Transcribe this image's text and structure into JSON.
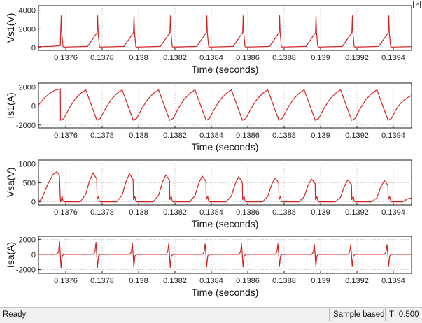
{
  "status_bar": {
    "ready_text": "Ready",
    "mode_text": "Sample based",
    "time_text": "T=0.500"
  },
  "expand_icon": "arrow-up-right-icon",
  "trace_color": "#d42222",
  "chart_data": [
    {
      "type": "line",
      "ylabel": "Vs1(V)",
      "xlabel": "Time (seconds)",
      "xlim": [
        0.13745,
        0.1395
      ],
      "ylim": [
        -300,
        4500
      ],
      "yticks": [
        0,
        2000,
        4000
      ],
      "xticks": [
        0.1376,
        0.1378,
        0.138,
        0.1382,
        0.1384,
        0.1386,
        0.1388,
        0.139,
        0.1392,
        0.1394
      ],
      "xticklabels": [
        "0.1376",
        "0.1378",
        "0.138",
        "0.1382",
        "0.1384",
        "0.1386",
        "0.1388",
        "0.139",
        "0.1392",
        "0.1394"
      ],
      "grid": true,
      "series": [
        {
          "x": [
            0.13745,
            0.13752,
            0.13757,
            0.137572,
            0.137575,
            0.137578,
            0.137585,
            0.13759,
            0.13772,
            0.137772,
            0.137775,
            0.137778,
            0.137785,
            0.13779,
            0.13792,
            0.137972,
            0.137975,
            0.137978,
            0.137985,
            0.13799,
            0.13812,
            0.138172,
            0.138175,
            0.138178,
            0.138185,
            0.13819,
            0.13832,
            0.138372,
            0.138375,
            0.138378,
            0.138385,
            0.13839,
            0.13852,
            0.138572,
            0.138575,
            0.138578,
            0.138585,
            0.13859,
            0.13872,
            0.138772,
            0.138775,
            0.138778,
            0.138785,
            0.13879,
            0.13892,
            0.138972,
            0.138975,
            0.138978,
            0.138985,
            0.13899,
            0.13912,
            0.139172,
            0.139175,
            0.139178,
            0.139185,
            0.13919,
            0.13932,
            0.139372,
            0.139375,
            0.139378,
            0.139385,
            0.13939,
            0.1395
          ],
          "y": [
            100,
            120,
            200,
            1600,
            3400,
            1600,
            100,
            50,
            120,
            1600,
            3400,
            1600,
            100,
            50,
            120,
            1600,
            3400,
            1600,
            100,
            50,
            120,
            1600,
            3400,
            1600,
            100,
            50,
            120,
            1600,
            3400,
            1600,
            100,
            50,
            120,
            1600,
            3400,
            1600,
            100,
            50,
            120,
            1600,
            3400,
            1600,
            100,
            50,
            120,
            1600,
            3400,
            1600,
            100,
            50,
            120,
            1600,
            3400,
            1600,
            100,
            50,
            120,
            1600,
            3400,
            1600,
            100,
            50,
            100
          ]
        }
      ]
    },
    {
      "type": "line",
      "ylabel": "Is1(A)",
      "xlabel": "Time (seconds)",
      "xlim": [
        0.13745,
        0.1395
      ],
      "ylim": [
        -2300,
        2400
      ],
      "yticks": [
        -2000,
        0,
        2000
      ],
      "xticks": [
        0.1376,
        0.1378,
        0.138,
        0.1382,
        0.1384,
        0.1386,
        0.1388,
        0.139,
        0.1392,
        0.1394
      ],
      "xticklabels": [
        "0.1376",
        "0.1378",
        "0.138",
        "0.1382",
        "0.1384",
        "0.1386",
        "0.1388",
        "0.139",
        "0.1392",
        "0.1394"
      ],
      "grid": true,
      "series": [
        {
          "x": [
            0.13745,
            0.13748,
            0.13751,
            0.13754,
            0.13757,
            0.137571,
            0.13759,
            0.13762,
            0.13765,
            0.13768,
            0.13771,
            0.137771,
            0.13779,
            0.13782,
            0.13785,
            0.13788,
            0.13791,
            0.137971,
            0.13799,
            0.13802,
            0.13805,
            0.13808,
            0.13811,
            0.138171,
            0.13819,
            0.13822,
            0.13825,
            0.13828,
            0.13831,
            0.138371,
            0.13839,
            0.13842,
            0.13845,
            0.13848,
            0.13851,
            0.138571,
            0.13859,
            0.13862,
            0.13865,
            0.13868,
            0.13871,
            0.138771,
            0.13879,
            0.13882,
            0.13885,
            0.13888,
            0.13891,
            0.138971,
            0.13899,
            0.13902,
            0.13905,
            0.13908,
            0.13911,
            0.139171,
            0.13919,
            0.13922,
            0.13925,
            0.13928,
            0.13931,
            0.139371,
            0.13939,
            0.13942,
            0.13945,
            0.13948,
            0.1395
          ],
          "y": [
            100,
            800,
            1300,
            1650,
            1800,
            -1500,
            -1300,
            -200,
            700,
            1300,
            1700,
            -1500,
            -1300,
            -200,
            700,
            1300,
            1700,
            -1500,
            -1300,
            -200,
            700,
            1300,
            1700,
            -1500,
            -1300,
            -200,
            700,
            1300,
            1700,
            -1500,
            -1300,
            -200,
            700,
            1300,
            1700,
            -1500,
            -1300,
            -200,
            700,
            1300,
            1700,
            -1500,
            -1300,
            -200,
            700,
            1300,
            1700,
            -1500,
            -1300,
            -200,
            700,
            1300,
            1700,
            -1500,
            -1300,
            -200,
            700,
            1300,
            1700,
            -1500,
            -1300,
            -200,
            500,
            900,
            1100
          ]
        }
      ]
    },
    {
      "type": "line",
      "ylabel": "Vsa(V)",
      "xlabel": "Time (seconds)",
      "xlim": [
        0.13745,
        0.1395
      ],
      "ylim": [
        -80,
        1100
      ],
      "yticks": [
        0,
        500,
        1000
      ],
      "xticks": [
        0.1376,
        0.1378,
        0.138,
        0.1382,
        0.1384,
        0.1386,
        0.1388,
        0.139,
        0.1392,
        0.1394
      ],
      "xticklabels": [
        "0.1376",
        "0.1378",
        "0.138",
        "0.1382",
        "0.1384",
        "0.1386",
        "0.1388",
        "0.139",
        "0.1392",
        "0.1394"
      ],
      "grid": true,
      "series": [
        {
          "x": [
            0.13745,
            0.13747,
            0.1375,
            0.13753,
            0.13755,
            0.137565,
            0.13757,
            0.137572,
            0.13758,
            0.137585,
            0.13759,
            0.13762,
            0.13765,
            0.13768,
            0.13771,
            0.13773,
            0.13775,
            0.13777,
            0.137772,
            0.13778,
            0.137785,
            0.13779,
            0.13782,
            0.13785,
            0.13788,
            0.13791,
            0.13793,
            0.13795,
            0.13797,
            0.137972,
            0.13798,
            0.137985,
            0.13799,
            0.13802,
            0.13805,
            0.13808,
            0.13811,
            0.13813,
            0.13815,
            0.13817,
            0.138172,
            0.13818,
            0.138185,
            0.13819,
            0.13822,
            0.13825,
            0.13828,
            0.13831,
            0.13833,
            0.13835,
            0.13837,
            0.138372,
            0.13838,
            0.138385,
            0.13839,
            0.13842,
            0.13845,
            0.13848,
            0.13851,
            0.13853,
            0.13855,
            0.13857,
            0.138572,
            0.13858,
            0.138585,
            0.13859,
            0.13862,
            0.13865,
            0.13868,
            0.13871,
            0.13873,
            0.13875,
            0.13877,
            0.138772,
            0.13878,
            0.138785,
            0.13879,
            0.13882,
            0.13885,
            0.13888,
            0.13891,
            0.13893,
            0.13895,
            0.13897,
            0.138972,
            0.13898,
            0.138985,
            0.13899,
            0.13902,
            0.13905,
            0.13908,
            0.13911,
            0.13913,
            0.13915,
            0.13917,
            0.139172,
            0.13918,
            0.139185,
            0.13919,
            0.13922,
            0.13925,
            0.13928,
            0.13931,
            0.13933,
            0.13935,
            0.13937,
            0.139372,
            0.13938,
            0.139385,
            0.13939,
            0.13942,
            0.13945,
            0.13948,
            0.1395
          ],
          "y": [
            0,
            100,
            450,
            720,
            790,
            700,
            80,
            0,
            150,
            20,
            0,
            0,
            0,
            0,
            200,
            550,
            760,
            600,
            60,
            140,
            20,
            0,
            0,
            0,
            0,
            180,
            520,
            740,
            580,
            60,
            140,
            20,
            0,
            0,
            0,
            0,
            170,
            500,
            710,
            560,
            60,
            140,
            20,
            0,
            0,
            0,
            0,
            160,
            480,
            680,
            540,
            60,
            140,
            20,
            0,
            0,
            0,
            0,
            150,
            460,
            660,
            520,
            60,
            140,
            20,
            0,
            0,
            0,
            0,
            140,
            440,
            630,
            500,
            60,
            140,
            20,
            0,
            0,
            0,
            0,
            130,
            420,
            600,
            480,
            60,
            140,
            20,
            0,
            0,
            0,
            0,
            120,
            400,
            580,
            460,
            60,
            140,
            20,
            0,
            0,
            0,
            0,
            110,
            380,
            560,
            440,
            60,
            140,
            20,
            0,
            0,
            0,
            80,
            100
          ]
        }
      ]
    },
    {
      "type": "line",
      "ylabel": "Isa(A)",
      "xlabel": "Time (seconds)",
      "xlim": [
        0.13745,
        0.1395
      ],
      "ylim": [
        -2500,
        2400
      ],
      "yticks": [
        -2000,
        0,
        2000
      ],
      "xticks": [
        0.1376,
        0.1378,
        0.138,
        0.1382,
        0.1384,
        0.1386,
        0.1388,
        0.139,
        0.1392,
        0.1394
      ],
      "xticklabels": [
        "0.1376",
        "0.1378",
        "0.138",
        "0.1382",
        "0.1384",
        "0.1386",
        "0.1388",
        "0.139",
        "0.1392",
        "0.1394"
      ],
      "grid": true,
      "series": [
        {
          "x": [
            0.13745,
            0.13755,
            0.13756,
            0.137566,
            0.13757,
            0.137574,
            0.13758,
            0.13759,
            0.13775,
            0.13776,
            0.137766,
            0.13777,
            0.137774,
            0.13778,
            0.13779,
            0.13795,
            0.13796,
            0.137966,
            0.13797,
            0.137974,
            0.13798,
            0.13799,
            0.13815,
            0.13816,
            0.138166,
            0.13817,
            0.138174,
            0.13818,
            0.13819,
            0.13835,
            0.13836,
            0.138366,
            0.13837,
            0.138374,
            0.13838,
            0.13839,
            0.13855,
            0.13856,
            0.138566,
            0.13857,
            0.138574,
            0.13858,
            0.13859,
            0.13875,
            0.13876,
            0.138766,
            0.13877,
            0.138774,
            0.13878,
            0.13879,
            0.13895,
            0.13896,
            0.138966,
            0.13897,
            0.138974,
            0.13898,
            0.13899,
            0.13915,
            0.13916,
            0.139166,
            0.13917,
            0.139174,
            0.13918,
            0.13919,
            0.13935,
            0.13936,
            0.139366,
            0.13937,
            0.139374,
            0.13938,
            0.13939,
            0.1395
          ],
          "y": [
            0,
            0,
            300,
            1700,
            0,
            -1800,
            -200,
            0,
            0,
            300,
            1600,
            0,
            -1750,
            -200,
            0,
            0,
            300,
            1500,
            0,
            -1700,
            -200,
            0,
            0,
            300,
            1500,
            0,
            -1700,
            -200,
            0,
            0,
            300,
            1400,
            0,
            -1650,
            -200,
            0,
            0,
            300,
            1400,
            0,
            -1650,
            -200,
            0,
            0,
            300,
            1400,
            0,
            -1600,
            -200,
            0,
            0,
            300,
            1300,
            0,
            -1600,
            -200,
            0,
            0,
            300,
            1300,
            0,
            -1600,
            -200,
            0,
            0,
            300,
            1300,
            0,
            -1600,
            -200,
            0,
            0
          ]
        }
      ]
    }
  ]
}
